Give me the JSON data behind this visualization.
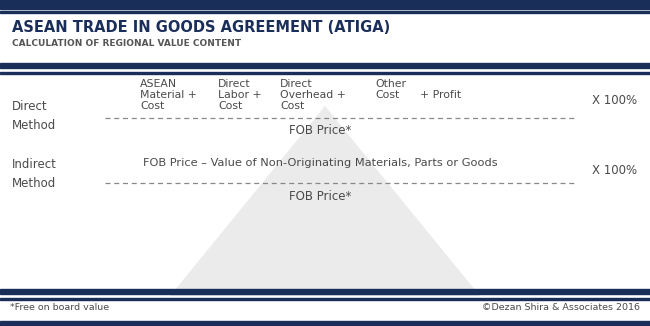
{
  "title_main": "ASEAN TRADE IN GOODS AGREEMENT (ATIGA)",
  "title_sub": "CALCULATION OF REGIONAL VALUE CONTENT",
  "bg_color": "#ffffff",
  "dark_blue": "#1a2e5a",
  "text_color": "#4a4a4a",
  "dashed_color": "#888888",
  "direct_multiplier": "X 100%",
  "direct_denominator": "FOB Price*",
  "indirect_numerator": "FOB Price – Value of Non-Originating Materials, Parts or Goods",
  "indirect_multiplier": "X 100%",
  "indirect_denominator": "FOB Price*",
  "footer_left": "*Free on board value",
  "footer_right": "©Dezan Shira & Associates 2016",
  "watermark_color": "#dedede",
  "fig_width": 6.5,
  "fig_height": 3.26,
  "dpi": 100
}
